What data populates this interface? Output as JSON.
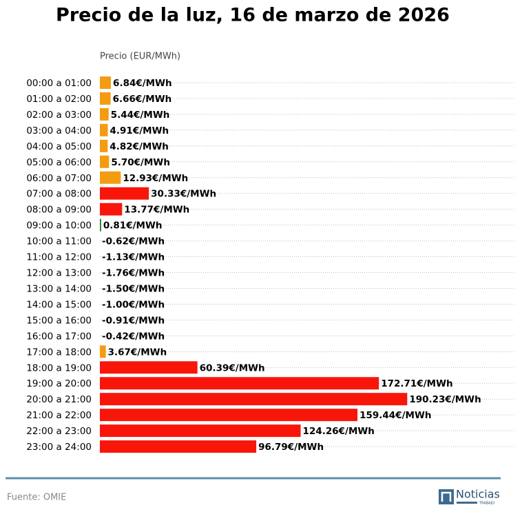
{
  "chart_data": {
    "type": "barh",
    "title": "Precio de la luz, 16 de marzo de 2026",
    "xlabel": "Precio (EUR/MWh)",
    "source": "Fuente: OMIE",
    "logo": {
      "name": "Noticias",
      "sub": "TRABAJO"
    },
    "categories": [
      "00:00 a 01:00",
      "01:00 a 02:00",
      "02:00 a 03:00",
      "03:00 a 04:00",
      "04:00 a 05:00",
      "05:00 a 06:00",
      "06:00 a 07:00",
      "07:00 a 08:00",
      "08:00 a 09:00",
      "09:00 a 10:00",
      "10:00 a 11:00",
      "11:00 a 12:00",
      "12:00 a 13:00",
      "13:00 a 14:00",
      "14:00 a 15:00",
      "15:00 a 16:00",
      "16:00 a 17:00",
      "17:00 a 18:00",
      "18:00 a 19:00",
      "19:00 a 20:00",
      "20:00 a 21:00",
      "21:00 a 22:00",
      "22:00 a 23:00",
      "23:00 a 24:00"
    ],
    "values": [
      6.84,
      6.66,
      5.44,
      4.91,
      4.82,
      5.7,
      12.93,
      30.33,
      13.77,
      0.81,
      -0.62,
      -1.13,
      -1.76,
      -1.5,
      -1.0,
      -0.91,
      -0.42,
      3.67,
      60.39,
      172.71,
      190.23,
      159.44,
      124.26,
      96.79
    ],
    "value_labels": [
      "6.84€/MWh",
      "6.66€/MWh",
      "5.44€/MWh",
      "4.91€/MWh",
      "4.82€/MWh",
      "5.70€/MWh",
      "12.93€/MWh",
      "30.33€/MWh",
      "13.77€/MWh",
      "0.81€/MWh",
      "-0.62€/MWh",
      "-1.13€/MWh",
      "-1.76€/MWh",
      "-1.50€/MWh",
      "-1.00€/MWh",
      "-0.91€/MWh",
      "-0.42€/MWh",
      "3.67€/MWh",
      "60.39€/MWh",
      "172.71€/MWh",
      "190.23€/MWh",
      "159.44€/MWh",
      "124.26€/MWh",
      "96.79€/MWh"
    ],
    "colors": [
      "#f39c12",
      "#f39c12",
      "#f39c12",
      "#f39c12",
      "#f39c12",
      "#f39c12",
      "#f39c12",
      "#f8160b",
      "#f8160b",
      "#2e7d32",
      "#2e7d32",
      "#2e7d32",
      "#2e7d32",
      "#2e7d32",
      "#2e7d32",
      "#2e7d32",
      "#2e7d32",
      "#f39c12",
      "#f8160b",
      "#f8160b",
      "#f8160b",
      "#f8160b",
      "#f8160b",
      "#f8160b"
    ],
    "xlim": [
      0,
      257
    ],
    "grid": true
  }
}
